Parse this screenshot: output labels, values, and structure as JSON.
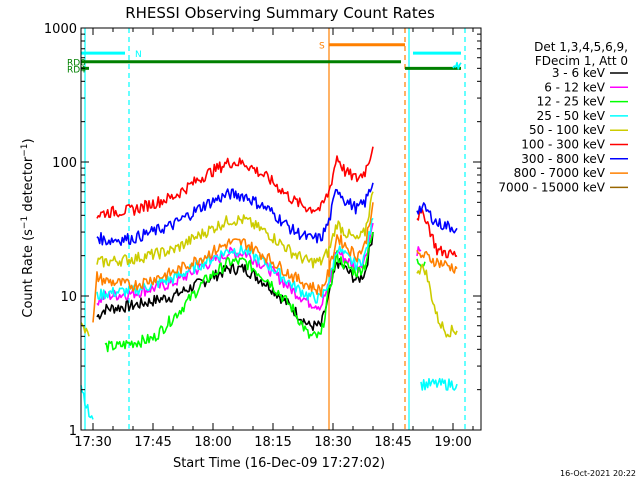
{
  "chart_data": {
    "type": "line",
    "title": "RHESSI Observing Summary Count Rates",
    "xlabel": "Start Time (16-Dec-09 17:27:02)",
    "ylabel_parts": [
      "Count Rate (s",
      "−1",
      " detector",
      "−1",
      ")"
    ],
    "y_scale": "log",
    "ylim": [
      1,
      1000
    ],
    "xlim": [
      "17:27",
      "19:07"
    ],
    "grid": false,
    "legend_position": "top-right",
    "footer_date": "16-Oct-2021 20:22",
    "x_ticks": [
      "17:30",
      "17:45",
      "18:00",
      "18:15",
      "18:30",
      "18:45",
      "19:00"
    ],
    "y_ticks": [
      1,
      10,
      100,
      1000
    ],
    "legend": {
      "header": [
        "Det 1,3,4,5,6,9,",
        "FDecim 1, Att 0"
      ],
      "entries": [
        {
          "label": "3 - 6 keV",
          "color": "#000000"
        },
        {
          "label": "6 - 12 keV",
          "color": "#ff00ff"
        },
        {
          "label": "12 - 25 keV",
          "color": "#00ff00"
        },
        {
          "label": "25 - 50 keV",
          "color": "#00ffff"
        },
        {
          "label": "50 - 100 keV",
          "color": "#cccc00"
        },
        {
          "label": "100 - 300 keV",
          "color": "#ff0000"
        },
        {
          "label": "300 - 800 keV",
          "color": "#0000ff"
        },
        {
          "label": "800 - 7000 keV",
          "color": "#ff8000"
        },
        {
          "label": "7000 - 15000 keV",
          "color": "#996600"
        }
      ]
    },
    "series": [
      {
        "color": "#000000",
        "segments": [
          [
            [
              "17:31",
              7
            ],
            [
              "17:33",
              8
            ],
            [
              "17:40",
              8.5
            ],
            [
              "17:50",
              10
            ],
            [
              "17:58",
              13
            ],
            [
              "18:04",
              16
            ],
            [
              "18:08",
              16
            ],
            [
              "18:14",
              12
            ],
            [
              "18:20",
              8
            ],
            [
              "18:24",
              6
            ],
            [
              "18:27",
              6
            ],
            [
              "18:29",
              10
            ],
            [
              "18:31",
              18
            ],
            [
              "18:33",
              16
            ],
            [
              "18:36",
              13
            ],
            [
              "18:38",
              15
            ],
            [
              "18:40",
              30
            ]
          ]
        ]
      },
      {
        "color": "#ff00ff",
        "segments": [
          [
            [
              "17:31",
              9
            ],
            [
              "17:33",
              10
            ],
            [
              "17:40",
              10.5
            ],
            [
              "17:50",
              12.5
            ],
            [
              "17:58",
              17
            ],
            [
              "18:04",
              21
            ],
            [
              "18:08",
              21
            ],
            [
              "18:14",
              16
            ],
            [
              "18:20",
              11
            ],
            [
              "18:24",
              9
            ],
            [
              "18:27",
              8.5
            ],
            [
              "18:29",
              12
            ],
            [
              "18:31",
              22
            ],
            [
              "18:33",
              19
            ],
            [
              "18:36",
              16
            ],
            [
              "18:38",
              19
            ],
            [
              "18:40",
              35
            ]
          ],
          [
            [
              "18:51",
              22
            ],
            [
              "18:52",
              22
            ]
          ]
        ]
      },
      {
        "color": "#00ff00",
        "segments": [
          [
            [
              "17:33",
              4.2
            ],
            [
              "17:36",
              4.2
            ],
            [
              "17:40",
              4.5
            ],
            [
              "17:45",
              4.8
            ],
            [
              "17:52",
              8
            ],
            [
              "17:58",
              13
            ],
            [
              "18:04",
              18
            ],
            [
              "18:08",
              18
            ],
            [
              "18:14",
              13
            ],
            [
              "18:20",
              8
            ],
            [
              "18:24",
              5
            ],
            [
              "18:27",
              5
            ],
            [
              "18:29",
              11
            ],
            [
              "18:31",
              20
            ],
            [
              "18:33",
              17
            ],
            [
              "18:36",
              15
            ],
            [
              "18:38",
              17
            ],
            [
              "18:40",
              30
            ]
          ],
          [
            [
              "18:51",
              18
            ],
            [
              "18:53",
              18
            ]
          ]
        ]
      },
      {
        "color": "#00ffff",
        "segments": [
          [
            [
              "17:27",
              2.2
            ],
            [
              "17:29",
              1.3
            ],
            [
              "17:30",
              1.2
            ]
          ],
          [
            [
              "17:31",
              10
            ],
            [
              "17:33",
              10.5
            ],
            [
              "17:40",
              11
            ],
            [
              "17:50",
              13.5
            ],
            [
              "17:58",
              18
            ],
            [
              "18:04",
              22
            ],
            [
              "18:08",
              22
            ],
            [
              "18:14",
              17
            ],
            [
              "18:20",
              12
            ],
            [
              "18:24",
              10
            ],
            [
              "18:27",
              9.5
            ],
            [
              "18:29",
              13
            ],
            [
              "18:31",
              23
            ],
            [
              "18:33",
              20
            ],
            [
              "18:36",
              17
            ],
            [
              "18:38",
              20
            ],
            [
              "18:40",
              38
            ]
          ],
          [
            [
              "19:00",
              550
            ],
            [
              "19:02",
              550
            ]
          ],
          [
            [
              "18:52",
              2.2
            ],
            [
              "18:55",
              2.2
            ],
            [
              "18:58",
              2.2
            ],
            [
              "19:01",
              2.2
            ]
          ]
        ]
      },
      {
        "color": "#cccc00",
        "segments": [
          [
            [
              "17:27",
              6
            ],
            [
              "17:29",
              5
            ]
          ],
          [
            [
              "17:31",
              18
            ],
            [
              "17:33",
              18
            ],
            [
              "17:40",
              19
            ],
            [
              "17:50",
              22
            ],
            [
              "17:58",
              30
            ],
            [
              "18:04",
              37
            ],
            [
              "18:08",
              37
            ],
            [
              "18:14",
              29
            ],
            [
              "18:20",
              21
            ],
            [
              "18:24",
              18
            ],
            [
              "18:27",
              18
            ],
            [
              "18:29",
              22
            ],
            [
              "18:31",
              35
            ],
            [
              "18:33",
              30
            ],
            [
              "18:36",
              26
            ],
            [
              "18:38",
              30
            ],
            [
              "18:40",
              60
            ]
          ],
          [
            [
              "18:51",
              16
            ],
            [
              "18:53",
              16
            ],
            [
              "18:56",
              7
            ],
            [
              "18:58",
              5.5
            ],
            [
              "19:01",
              5.5
            ]
          ]
        ]
      },
      {
        "color": "#ff0000",
        "segments": [
          [
            [
              "17:31",
              40
            ],
            [
              "17:33",
              42
            ],
            [
              "17:40",
              44
            ],
            [
              "17:50",
              55
            ],
            [
              "17:58",
              80
            ],
            [
              "18:04",
              100
            ],
            [
              "18:08",
              98
            ],
            [
              "18:14",
              75
            ],
            [
              "18:20",
              52
            ],
            [
              "18:24",
              45
            ],
            [
              "18:27",
              45
            ],
            [
              "18:29",
              60
            ],
            [
              "18:31",
              110
            ],
            [
              "18:33",
              85
            ],
            [
              "18:36",
              75
            ],
            [
              "18:38",
              85
            ],
            [
              "18:40",
              130
            ]
          ],
          [
            [
              "18:51",
              40
            ],
            [
              "18:53",
              40
            ],
            [
              "18:56",
              22
            ],
            [
              "19:01",
              20
            ]
          ]
        ]
      },
      {
        "color": "#0000ff",
        "segments": [
          [
            [
              "17:31",
              28
            ],
            [
              "17:33",
              26
            ],
            [
              "17:40",
              27
            ],
            [
              "17:50",
              34
            ],
            [
              "17:58",
              48
            ],
            [
              "18:04",
              58
            ],
            [
              "18:08",
              56
            ],
            [
              "18:14",
              44
            ],
            [
              "18:20",
              31
            ],
            [
              "18:24",
              27
            ],
            [
              "18:27",
              27
            ],
            [
              "18:29",
              36
            ],
            [
              "18:31",
              65
            ],
            [
              "18:33",
              52
            ],
            [
              "18:36",
              45
            ],
            [
              "18:38",
              50
            ],
            [
              "18:40",
              70
            ]
          ],
          [
            [
              "18:51",
              45
            ],
            [
              "18:53",
              45
            ],
            [
              "18:56",
              35
            ],
            [
              "19:01",
              32
            ]
          ]
        ]
      },
      {
        "color": "#ff8000",
        "segments": [
          [
            [
              "17:30",
              6
            ],
            [
              "17:31",
              14
            ],
            [
              "17:33",
              13
            ],
            [
              "17:40",
              12
            ],
            [
              "17:50",
              15
            ],
            [
              "17:58",
              20
            ],
            [
              "18:04",
              25
            ],
            [
              "18:08",
              25
            ],
            [
              "18:14",
              19
            ],
            [
              "18:20",
              14
            ],
            [
              "18:24",
              12
            ],
            [
              "18:27",
              11
            ],
            [
              "18:29",
              15
            ],
            [
              "18:31",
              28
            ],
            [
              "18:33",
              24
            ],
            [
              "18:36",
              20
            ],
            [
              "18:38",
              24
            ],
            [
              "18:40",
              50
            ]
          ],
          [
            [
              "18:51",
              20
            ],
            [
              "18:53",
              20
            ],
            [
              "18:56",
              18
            ],
            [
              "19:01",
              16
            ]
          ]
        ]
      },
      {
        "color": "#996600",
        "segments": []
      }
    ],
    "flag_bars": [
      {
        "label": "N",
        "color": "#00ffff",
        "x_start": "17:27",
        "x_end": "17:38",
        "level": 650
      },
      {
        "label": "",
        "color": "#00ffff",
        "x_start": "18:50",
        "x_end": "19:02",
        "level": 650
      },
      {
        "label": "RD0",
        "color": "#008000",
        "x_start": "17:27",
        "x_end": "18:47",
        "level": 560
      },
      {
        "label": "",
        "color": "#008000",
        "x_start": "18:48",
        "x_end": "19:02",
        "level": 500
      },
      {
        "label": "RD4",
        "color": "#008000",
        "x_start": "17:27",
        "x_end": "17:29",
        "level": 500
      },
      {
        "label": "S",
        "color": "#ff8000",
        "x_start": "18:29",
        "x_end": "18:48",
        "level": 750
      }
    ],
    "vertical_markers": [
      {
        "time": "17:28",
        "color": "#00ffff",
        "style": "solid"
      },
      {
        "time": "17:39",
        "color": "#00ffff",
        "style": "dashed"
      },
      {
        "time": "18:29",
        "color": "#ff8000",
        "style": "solid"
      },
      {
        "time": "18:48",
        "color": "#ff8000",
        "style": "dashed"
      },
      {
        "time": "18:49",
        "color": "#00ffff",
        "style": "solid"
      },
      {
        "time": "19:03",
        "color": "#00ffff",
        "style": "dashed"
      }
    ]
  }
}
